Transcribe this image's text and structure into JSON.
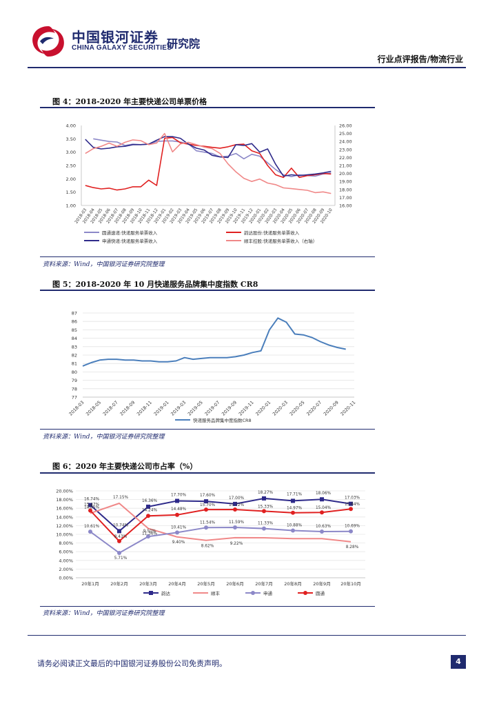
{
  "header": {
    "logo_cn": "中国银河证券",
    "logo_en": "CHINA GALAXY SECURITIES",
    "logo_sub": "研究院",
    "report_type": "行业点评报告/物流行业"
  },
  "figures": [
    {
      "title": "图 4：2018-2020 年主要快递公司单票价格",
      "source": "资料来源：Wind，中国银河证券研究院整理"
    },
    {
      "title": "图 5：2018-2020 年 10 月快递服务品牌集中度指数 CR8",
      "source": "资料来源：Wind，中国银河证券研究院整理"
    },
    {
      "title": "图 6：2020 年主要快递公司市占率（%）",
      "source": "资料来源：Wind，中国银河证券研究院整理"
    }
  ],
  "footer": {
    "disclaimer": "请务必阅读正文最后的中国银河证券股份公司免责声明。",
    "page_number": "4"
  },
  "chart_data": [
    {
      "type": "line",
      "title": "",
      "x": [
        "2018-03",
        "2018-04",
        "2018-05",
        "2018-06",
        "2018-07",
        "2018-08",
        "2018-09",
        "2018-10",
        "2018-11",
        "2018-12",
        "2019-01",
        "2019-02",
        "2019-03",
        "2019-04",
        "2019-05",
        "2019-06",
        "2019-07",
        "2019-08",
        "2019-09",
        "2019-10",
        "2019-11",
        "2019-12",
        "2020-01",
        "2020-02",
        "2020-03",
        "2020-04",
        "2020-05",
        "2020-06",
        "2020-07",
        "2020-08",
        "2020-09",
        "2020-10"
      ],
      "y_left_lim": [
        1.0,
        4.0
      ],
      "y_left_ticks": [
        "1.00",
        "1.50",
        "2.00",
        "2.50",
        "3.00",
        "3.50",
        "4.00"
      ],
      "y_right_lim": [
        16.0,
        26.0
      ],
      "y_right_ticks": [
        "16.00",
        "17.00",
        "18.00",
        "19.00",
        "20.00",
        "21.00",
        "22.00",
        "23.00",
        "24.00",
        "25.00",
        "26.00"
      ],
      "series": [
        {
          "name": "圆通速递:快递服务单票收入",
          "axis": "left",
          "color": "#8c88c8",
          "values": [
            null,
            3.5,
            3.45,
            3.4,
            3.38,
            3.25,
            3.3,
            3.28,
            3.3,
            3.4,
            3.42,
            3.42,
            3.38,
            3.32,
            3.05,
            3.0,
            2.95,
            2.82,
            2.85,
            2.95,
            2.75,
            2.92,
            2.85,
            2.6,
            2.35,
            2.15,
            2.08,
            2.15,
            2.12,
            2.1,
            2.18,
            2.22
          ]
        },
        {
          "name": "韵达股份:快递服务单票收入",
          "axis": "left",
          "color": "#e02020",
          "values": [
            1.75,
            1.67,
            1.62,
            1.65,
            1.58,
            1.62,
            1.7,
            1.7,
            1.95,
            1.75,
            3.52,
            3.55,
            3.35,
            3.3,
            3.25,
            3.22,
            3.18,
            3.15,
            3.2,
            3.28,
            3.3,
            3.05,
            2.95,
            2.5,
            2.15,
            2.05,
            2.4,
            2.05,
            2.12,
            2.15,
            2.2,
            2.18
          ]
        },
        {
          "name": "申通快递:快递服务单票收入",
          "axis": "left",
          "color": "#2e2a8a",
          "values": [
            3.48,
            3.18,
            3.12,
            3.15,
            3.2,
            3.22,
            3.28,
            3.28,
            3.3,
            3.45,
            3.58,
            3.58,
            3.52,
            3.3,
            3.15,
            3.08,
            2.88,
            2.82,
            2.8,
            3.28,
            3.25,
            3.32,
            3.0,
            3.12,
            2.55,
            2.1,
            2.15,
            2.12,
            2.15,
            2.18,
            2.22,
            2.28
          ]
        },
        {
          "name": "顺丰控股:快递服务单票收入（右轴）",
          "axis": "right",
          "color": "#f08888",
          "values": [
            22.5,
            23.1,
            23.4,
            23.8,
            23.4,
            23.9,
            24.2,
            24.1,
            23.6,
            23.8,
            25.0,
            22.7,
            23.7,
            23.9,
            23.6,
            23.3,
            23.1,
            22.5,
            21.2,
            20.2,
            19.4,
            19.0,
            19.3,
            18.8,
            18.6,
            18.2,
            18.1,
            18.0,
            17.9,
            17.6,
            17.7,
            17.5
          ]
        }
      ]
    },
    {
      "type": "line",
      "title": "",
      "x": [
        "2018-03",
        "2018-04",
        "2018-05",
        "2018-06",
        "2018-07",
        "2018-08",
        "2018-09",
        "2018-10",
        "2018-11",
        "2018-12",
        "2019-01",
        "2019-02",
        "2019-03",
        "2019-04",
        "2019-05",
        "2019-06",
        "2019-07",
        "2019-08",
        "2019-09",
        "2019-10",
        "2019-11",
        "2019-12",
        "2020-01",
        "2020-02",
        "2020-03",
        "2020-04",
        "2020-05",
        "2020-06",
        "2020-07",
        "2020-08",
        "2020-09",
        "2020-10",
        "2020-11"
      ],
      "x_tick_labels": [
        "2018-03",
        "2018-05",
        "2018-07",
        "2018-09",
        "2018-11",
        "2019-01",
        "2019-03",
        "2019-05",
        "2019-07",
        "2019-09",
        "2019-11",
        "2020-01",
        "2020-03",
        "2020-05",
        "2020-07",
        "2020-09",
        "2020-11"
      ],
      "ylim": [
        77,
        87
      ],
      "y_ticks": [
        "77",
        "78",
        "79",
        "80",
        "81",
        "82",
        "83",
        "84",
        "85",
        "86",
        "87"
      ],
      "series": [
        {
          "name": "快递服务品牌集中度指数CR8",
          "color": "#4a7ebb",
          "values": [
            80.7,
            81.1,
            81.4,
            81.5,
            81.5,
            81.4,
            81.4,
            81.3,
            81.3,
            81.2,
            81.2,
            81.3,
            81.7,
            81.5,
            81.6,
            81.7,
            81.7,
            81.7,
            81.8,
            82.0,
            82.3,
            82.5,
            85.0,
            86.4,
            85.9,
            84.5,
            84.4,
            84.1,
            83.6,
            83.2,
            82.9,
            82.7,
            null
          ]
        }
      ]
    },
    {
      "type": "line",
      "title": "",
      "categories": [
        "20年1月",
        "20年2月",
        "20年3月",
        "20年4月",
        "20年5月",
        "20年6月",
        "20年7月",
        "20年8月",
        "20年9月",
        "20年10月"
      ],
      "ylim": [
        0,
        20
      ],
      "y_ticks": [
        "0.00%",
        "2.00%",
        "4.00%",
        "6.00%",
        "8.00%",
        "10.00%",
        "12.00%",
        "14.00%",
        "16.00%",
        "18.00%",
        "20.00%"
      ],
      "series": [
        {
          "name": "韵达",
          "color": "#2e2a8a",
          "values": [
            16.74,
            10.74,
            16.36,
            17.7,
            17.6,
            17.0,
            18.27,
            17.71,
            18.06,
            17.03
          ],
          "labels": [
            "16.74%",
            "10.74%",
            "16.36%",
            "17.70%",
            "17.60%",
            "17.00%",
            "18.27%",
            "17.71%",
            "18.06%",
            "17.03%"
          ]
        },
        {
          "name": "顺丰",
          "color": "#f08888",
          "values": [
            14.85,
            17.15,
            11.36,
            9.4,
            8.62,
            9.22,
            9.2,
            9.0,
            9.0,
            8.28
          ],
          "labels": [
            "14.85%",
            "17.15%",
            "11.36%",
            "9.40%",
            "8.62%",
            "9.22%",
            "",
            "",
            "",
            "8.28%"
          ]
        },
        {
          "name": "申通",
          "color": "#8c88c8",
          "values": [
            10.61,
            5.71,
            9.5,
            10.41,
            11.54,
            11.59,
            11.33,
            10.88,
            10.63,
            10.69
          ],
          "labels": [
            "10.61%",
            "5.71%",
            "9.50%",
            "10.41%",
            "11.54%",
            "11.59%",
            "11.33%",
            "10.88%",
            "10.63%",
            "10.69%"
          ]
        },
        {
          "name": "圆通",
          "color": "#e02020",
          "values": [
            15.47,
            8.43,
            14.24,
            14.48,
            15.7,
            15.72,
            15.33,
            14.97,
            15.04,
            15.84
          ],
          "labels": [
            "15.47%",
            "8.43%",
            "14.24%",
            "14.48%",
            "15.70%",
            "15.72%",
            "15.33%",
            "14.97%",
            "15.04%",
            "15.84%"
          ]
        }
      ]
    }
  ]
}
